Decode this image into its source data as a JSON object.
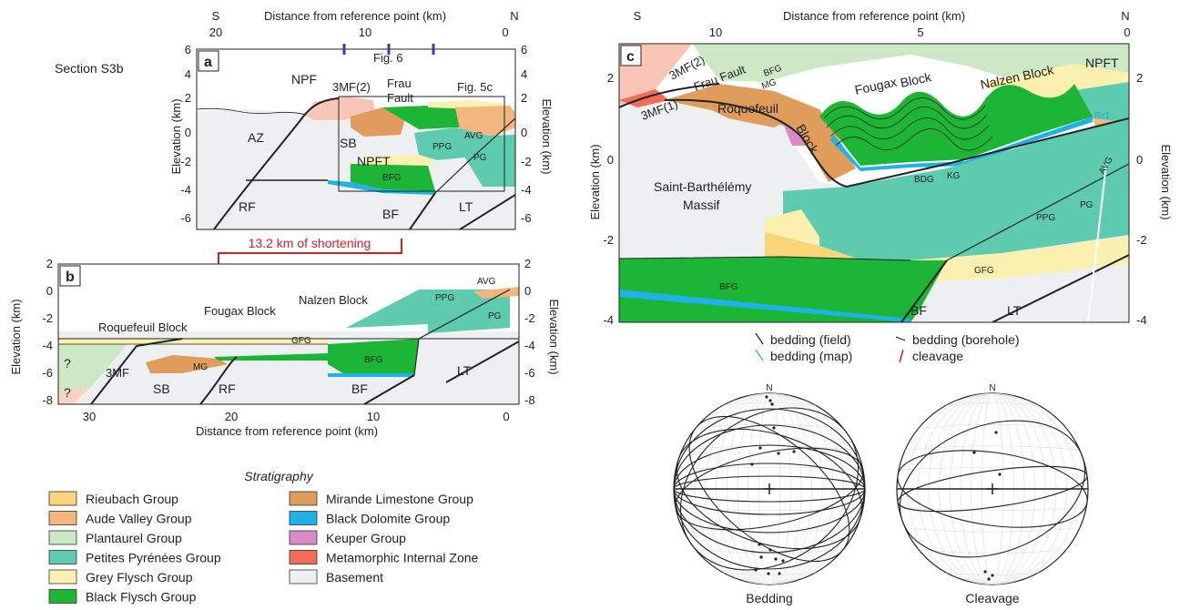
{
  "section_title": "Section S3b",
  "panel_a": {
    "letter": "a",
    "top_axis_label": "Distance from reference point (km)",
    "dir_left": "S",
    "dir_right": "N",
    "x_ticks": [
      "20",
      "10",
      "0"
    ],
    "y_label_left": "Elevation (km)",
    "y_label_right": "Elevation (km)",
    "y_ticks": [
      "6",
      "4",
      "2",
      "0",
      "-2",
      "-4",
      "-6"
    ],
    "fig_refs": [
      "Fig. 6",
      "Fig. 5c"
    ],
    "labels": {
      "npf": "NPF",
      "mf2": "3MF(2)",
      "frau": "Frau",
      "fault": "Fault",
      "az": "AZ",
      "sb": "SB",
      "npft": "NPFT",
      "rf": "RF",
      "bf": "BF",
      "lt": "LT",
      "ppg": "PPG",
      "pg": "PG",
      "avg": "AVG",
      "bfg": "BFG"
    }
  },
  "shortening": "13.2 km of shortening",
  "panel_b": {
    "letter": "b",
    "x_axis_label": "Distance from reference point (km)",
    "x_ticks": [
      "30",
      "20",
      "10",
      "0"
    ],
    "y_label_left": "Elevation (km)",
    "y_label_right": "Elevation (km)",
    "y_ticks": [
      "2",
      "0",
      "-2",
      "-4",
      "-6",
      "-8"
    ],
    "labels": {
      "q1": "?",
      "q2": "?",
      "mf": "3MF",
      "sb": "SB",
      "rf": "RF",
      "bf": "BF",
      "lt": "LT",
      "mg": "MG",
      "gfg": "GFG",
      "bfg": "BFG",
      "ppg": "PPG",
      "pg": "PG",
      "avg": "AVG",
      "roquefeuil": "Roquefeuil Block",
      "fougax": "Fougax Block",
      "nalzen": "Nalzen Block"
    }
  },
  "panel_c": {
    "letter": "c",
    "top_axis_label": "Distance from reference point (km)",
    "dir_left": "S",
    "dir_right": "N",
    "x_ticks": [
      "10",
      "5",
      "0"
    ],
    "y_label_left": "Elevation (km)",
    "y_label_right": "Elevation (km)",
    "y_ticks": [
      "2",
      "0",
      "-2",
      "-4"
    ],
    "labels": {
      "mf2": "3MF(2)",
      "mf1": "3MF(1)",
      "frau": "Frau Fault",
      "bfg_top": "BFG",
      "mg": "MG",
      "fougax": "Fougax",
      "block1": "Block",
      "nalzen": "Nalzen Block",
      "npft": "NPFT",
      "roquefeuil": "Roquefeuil",
      "block2": "Block",
      "bx1": "Bx1",
      "bdg": "BDG",
      "kg": "KG",
      "sbm1": "Saint-Barthélémy",
      "sbm2": "Massif",
      "avg": "AVG",
      "pg": "PG",
      "ppg": "PPG",
      "gfg": "GFG",
      "bfg": "BFG",
      "bf": "BF",
      "lt": "LT"
    }
  },
  "symbol_legend": [
    {
      "label": "bedding (field)",
      "color": "#222222"
    },
    {
      "label": "bedding (borehole)",
      "color": "#222222"
    },
    {
      "label": "bedding (map)",
      "color": "#2aa7d8"
    },
    {
      "label": "cleavage",
      "color": "#d62020"
    }
  ],
  "stratigraphy": {
    "title": "Stratigraphy",
    "units": [
      {
        "label": "Rieubach Group",
        "color": "#f9d57a"
      },
      {
        "label": "Aude Valley Group",
        "color": "#f3b67e"
      },
      {
        "label": "Plantaurel Group",
        "color": "#cde8c5"
      },
      {
        "label": "Petites Pyrénées Group",
        "color": "#5fcbae"
      },
      {
        "label": "Grey Flysch Group",
        "color": "#faf0b0"
      },
      {
        "label": "Black Flysch Group",
        "color": "#1db535"
      },
      {
        "label": "Mirande Limestone Group",
        "color": "#df9c5b"
      },
      {
        "label": "Black Dolomite Group",
        "color": "#1fb2e6"
      },
      {
        "label": "Keuper Group",
        "color": "#d98ac4"
      },
      {
        "label": "Metamorphic Internal Zone",
        "color": "#f26d55"
      },
      {
        "label": "Basement",
        "color": "#eeeff1"
      }
    ]
  },
  "stereonets": {
    "north": "N",
    "bedding": "Bedding",
    "cleavage": "Cleavage"
  }
}
